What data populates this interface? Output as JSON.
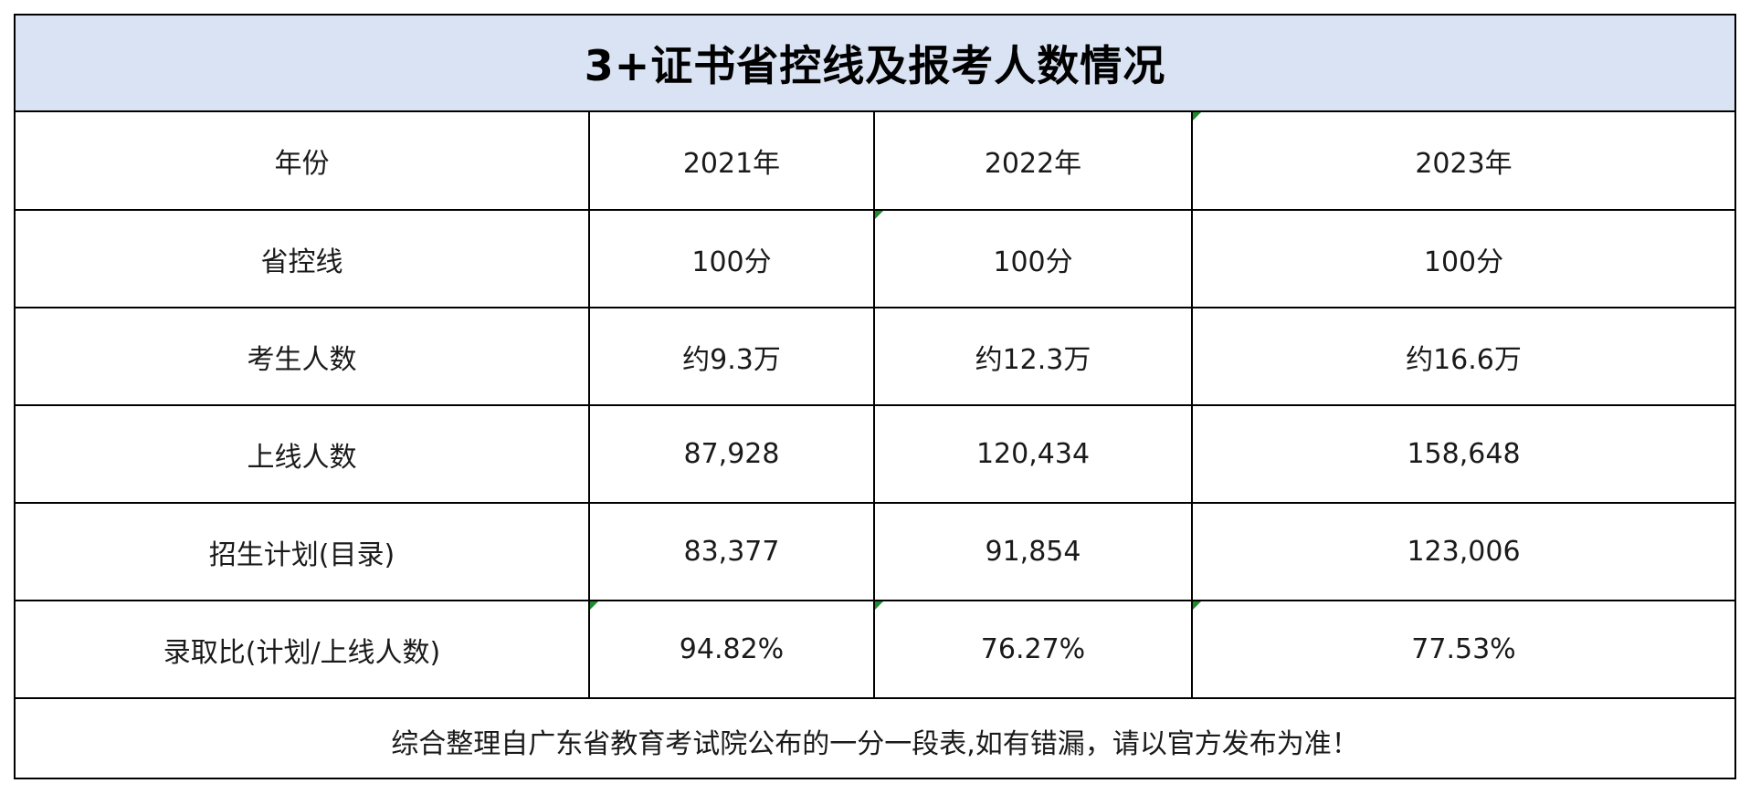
{
  "table": {
    "title": "3+证书省控线及报考人数情况",
    "header": {
      "label": "年份",
      "years": [
        "2021年",
        "2022年",
        "2023年"
      ]
    },
    "rows": [
      {
        "label": "省控线",
        "values": [
          "100分",
          "100分",
          "100分"
        ]
      },
      {
        "label": "考生人数",
        "values": [
          "约9.3万",
          "约12.3万",
          "约16.6万"
        ]
      },
      {
        "label": "上线人数",
        "values": [
          "87,928",
          "120,434",
          "158,648"
        ]
      },
      {
        "label": "招生计划(目录)",
        "values": [
          "83,377",
          "91,854",
          "123,006"
        ]
      },
      {
        "label": "录取比(计划/上线人数)",
        "values": [
          "94.82%",
          "76.27%",
          "77.53%"
        ]
      }
    ],
    "note": "综合整理自广东省教育考试院公布的一分一段表,如有错漏，请以官方发布为准！"
  }
}
